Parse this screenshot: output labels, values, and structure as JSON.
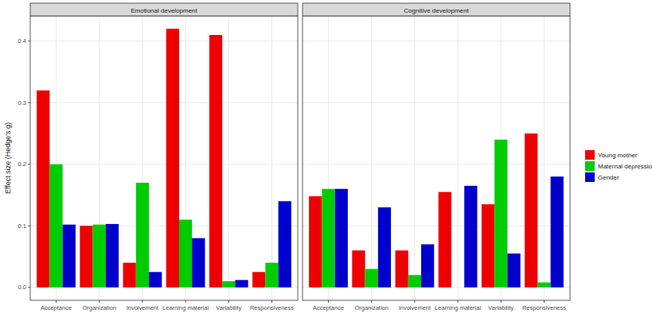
{
  "chart_data": [
    {
      "type": "bar",
      "title": "Emotional development",
      "y_label": "Effect size (Hedge's g)",
      "categories": [
        "Acceptance",
        "Organization",
        "Involvement",
        "Learning material",
        "Variability",
        "Responsiveness"
      ],
      "series": [
        {
          "name": "Young mother",
          "color": "#ee0000",
          "values": [
            0.32,
            0.1,
            0.04,
            0.42,
            0.41,
            0.025
          ]
        },
        {
          "name": "Maternal depression",
          "color": "#00cc00",
          "values": [
            0.2,
            0.102,
            0.17,
            0.11,
            0.01,
            0.04
          ]
        },
        {
          "name": "Gender",
          "color": "#0000cc",
          "values": [
            0.102,
            0.103,
            0.025,
            0.08,
            0.012,
            0.14
          ]
        }
      ],
      "ylim": [
        -0.021,
        0.441
      ],
      "yticks": [
        {
          "value": 0,
          "label": "0.0"
        },
        0.1,
        0.2,
        0.3,
        0.4
      ],
      "grid": true,
      "legend": "right"
    },
    {
      "type": "bar",
      "title": "Cognitive development",
      "categories": [
        "Acceptance",
        "Organization",
        "Involvement",
        "Learning material",
        "Variability",
        "Responsiveness"
      ],
      "series": [
        {
          "color": "#ee0000",
          "values": [
            0.148,
            0.06,
            0.06,
            0.155,
            0.135,
            0.25
          ]
        },
        {
          "color": "#00cc00",
          "values": [
            0.16,
            0.03,
            0.02,
            0,
            0.24,
            0.008
          ]
        },
        {
          "color": "#0000cc",
          "values": [
            0.16,
            0.13,
            0.07,
            0.165,
            0.055,
            0.18
          ]
        }
      ],
      "ylim": [
        -0.021,
        0.441
      ],
      "yticks": [
        {
          "value": 0,
          "label": "0.0"
        },
        0.1,
        0.2,
        0.3,
        0.4
      ],
      "grid": true
    }
  ]
}
